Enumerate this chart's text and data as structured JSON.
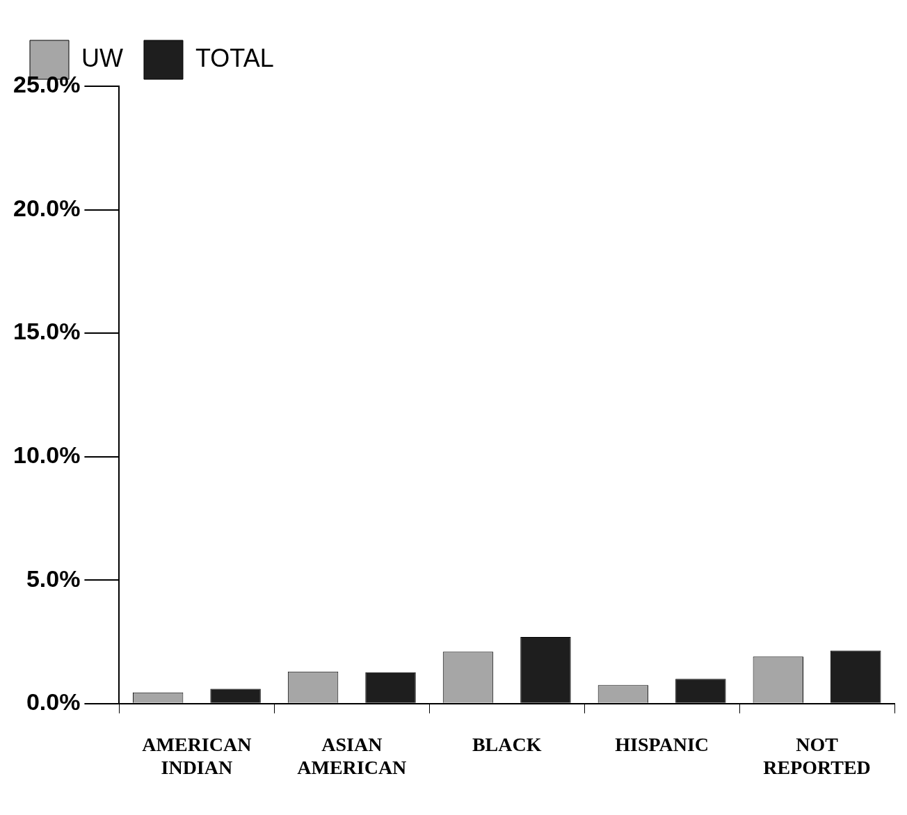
{
  "chart_data": {
    "type": "bar",
    "categories": [
      "AMERICAN INDIAN",
      "ASIAN AMERICAN",
      "BLACK",
      "HISPANIC",
      "NOT REPORTED"
    ],
    "series": [
      {
        "name": "UW",
        "color": "#a6a6a6",
        "values": [
          0.45,
          1.3,
          2.1,
          0.75,
          1.9
        ]
      },
      {
        "name": "TOTAL",
        "color": "#1e1e1e",
        "values": [
          0.6,
          1.27,
          2.7,
          1.0,
          2.15
        ]
      }
    ],
    "ylim": [
      0,
      25
    ],
    "yticks": [
      {
        "value": 0,
        "label": "0.0%"
      },
      {
        "value": 5,
        "label": "5.0%"
      },
      {
        "value": 10,
        "label": "10.0%"
      },
      {
        "value": 15,
        "label": "15.0%"
      },
      {
        "value": 20,
        "label": "20.0%"
      },
      {
        "value": 25,
        "label": "25.0%"
      }
    ],
    "grid": false,
    "legend": "top left"
  }
}
